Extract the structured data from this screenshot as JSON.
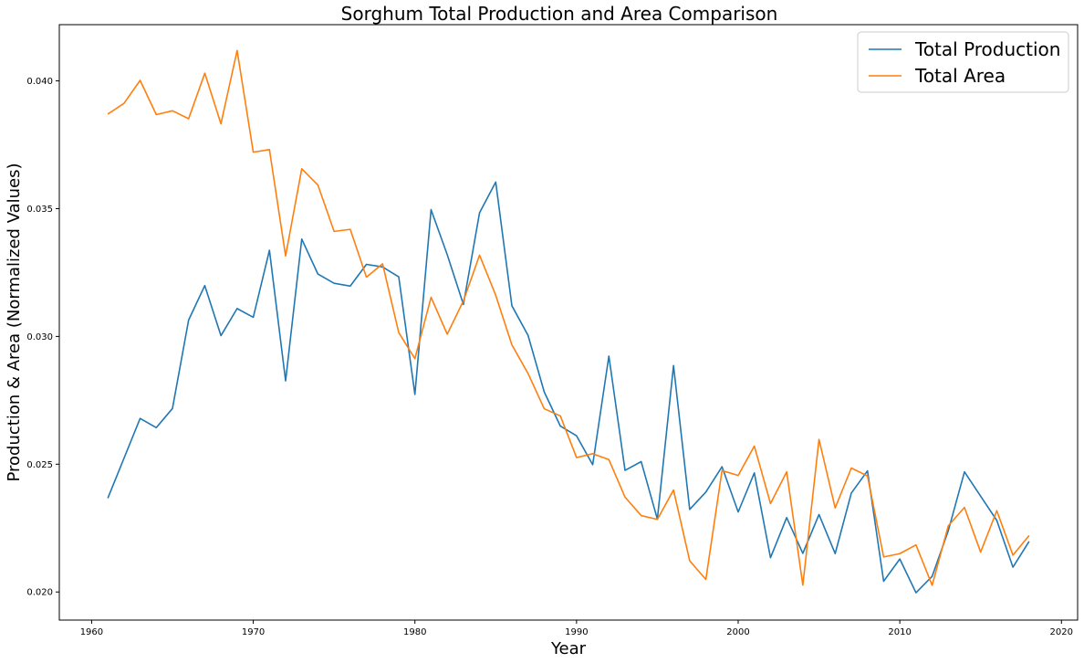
{
  "chart_data": {
    "type": "line",
    "title": "Sorghum Total Production and Area Comparison",
    "xlabel": "Year",
    "ylabel": "Production & Area (Normalized Values)",
    "xlim": [
      1958,
      2021
    ],
    "ylim": [
      0.0189,
      0.0422
    ],
    "x_ticks": [
      1960,
      1970,
      1980,
      1990,
      2000,
      2010,
      2020
    ],
    "y_ticks": [
      0.02,
      0.025,
      0.03,
      0.035,
      0.04
    ],
    "y_tick_labels": [
      "0.020",
      "0.025",
      "0.030",
      "0.035",
      "0.040"
    ],
    "grid": false,
    "legend_position": "top-right",
    "x": [
      1961,
      1962,
      1963,
      1964,
      1965,
      1966,
      1967,
      1968,
      1969,
      1970,
      1971,
      1972,
      1973,
      1974,
      1975,
      1976,
      1977,
      1978,
      1979,
      1980,
      1981,
      1982,
      1983,
      1984,
      1985,
      1986,
      1987,
      1988,
      1989,
      1990,
      1991,
      1992,
      1993,
      1994,
      1995,
      1996,
      1997,
      1998,
      1999,
      2000,
      2001,
      2002,
      2003,
      2004,
      2005,
      2006,
      2007,
      2008,
      2009,
      2010,
      2011,
      2012,
      2013,
      2014,
      2015,
      2016,
      2017,
      2018
    ],
    "series": [
      {
        "name": "Total Production",
        "color": "#1f77b4",
        "values": [
          0.02367,
          0.02523,
          0.02679,
          0.02643,
          0.02718,
          0.03064,
          0.03199,
          0.03003,
          0.03109,
          0.03075,
          0.03337,
          0.02826,
          0.03381,
          0.03244,
          0.03208,
          0.03197,
          0.03282,
          0.03272,
          0.03233,
          0.02773,
          0.03496,
          0.0332,
          0.03125,
          0.03484,
          0.03604,
          0.0312,
          0.03004,
          0.02783,
          0.02649,
          0.02611,
          0.02498,
          0.02923,
          0.02476,
          0.0251,
          0.02285,
          0.02886,
          0.02323,
          0.02391,
          0.0249,
          0.02313,
          0.02466,
          0.02134,
          0.02291,
          0.02151,
          0.02303,
          0.0215,
          0.02387,
          0.02474,
          0.02042,
          0.02129,
          0.01997,
          0.02061,
          0.0224,
          0.0247,
          0.02375,
          0.0228,
          0.02097,
          0.02198
        ]
      },
      {
        "name": "Total Area",
        "color": "#ff7f0e",
        "values": [
          0.0387,
          0.03912,
          0.04002,
          0.03868,
          0.03883,
          0.03852,
          0.0403,
          0.03832,
          0.04119,
          0.03721,
          0.03731,
          0.03315,
          0.03656,
          0.03592,
          0.03411,
          0.03419,
          0.03232,
          0.03284,
          0.03015,
          0.02913,
          0.03153,
          0.03009,
          0.03139,
          0.03318,
          0.03161,
          0.02967,
          0.02855,
          0.02717,
          0.02689,
          0.02526,
          0.02541,
          0.02518,
          0.02371,
          0.02299,
          0.02284,
          0.02399,
          0.02122,
          0.02049,
          0.02475,
          0.02456,
          0.02571,
          0.02346,
          0.0247,
          0.02027,
          0.02597,
          0.02329,
          0.02485,
          0.02454,
          0.02137,
          0.0215,
          0.02184,
          0.02026,
          0.02259,
          0.02331,
          0.02156,
          0.02318,
          0.02144,
          0.02221
        ]
      }
    ]
  }
}
